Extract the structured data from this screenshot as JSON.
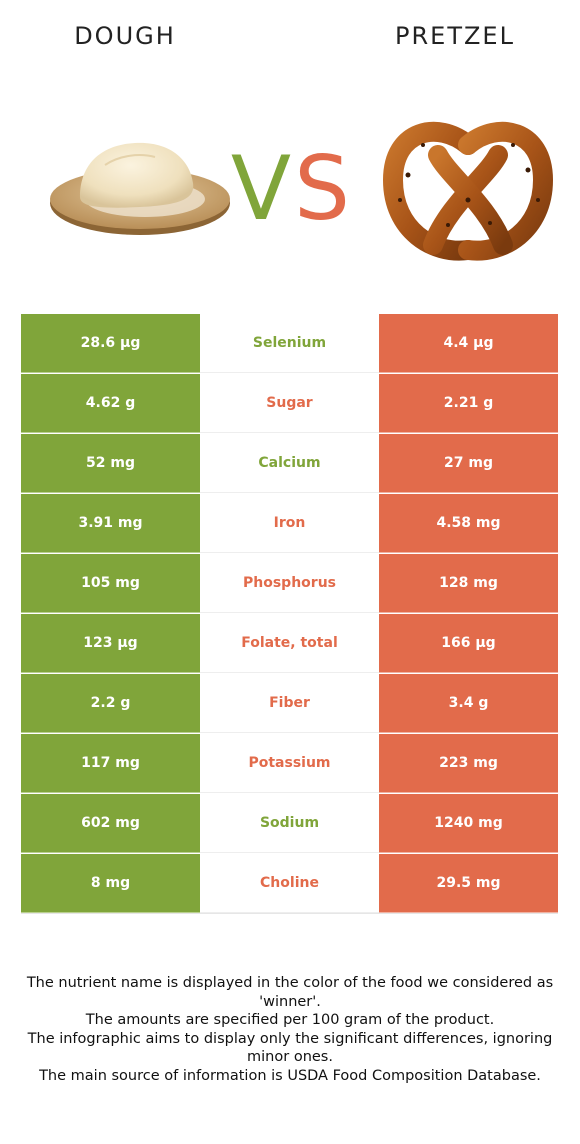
{
  "header": {
    "left_food": "DOUGH",
    "right_food": "PRETZEL",
    "vs_left": "V",
    "vs_right": "S"
  },
  "colors": {
    "left": "#80a53a",
    "right": "#e26b4b"
  },
  "rows": [
    {
      "nutrient": "Selenium",
      "left": "28.6 µg",
      "right": "4.4 µg",
      "winner": "left"
    },
    {
      "nutrient": "Sugar",
      "left": "4.62 g",
      "right": "2.21 g",
      "winner": "right"
    },
    {
      "nutrient": "Calcium",
      "left": "52 mg",
      "right": "27 mg",
      "winner": "left"
    },
    {
      "nutrient": "Iron",
      "left": "3.91 mg",
      "right": "4.58 mg",
      "winner": "right"
    },
    {
      "nutrient": "Phosphorus",
      "left": "105 mg",
      "right": "128 mg",
      "winner": "right"
    },
    {
      "nutrient": "Folate, total",
      "left": "123 µg",
      "right": "166 µg",
      "winner": "right"
    },
    {
      "nutrient": "Fiber",
      "left": "2.2 g",
      "right": "3.4 g",
      "winner": "right"
    },
    {
      "nutrient": "Potassium",
      "left": "117 mg",
      "right": "223 mg",
      "winner": "right"
    },
    {
      "nutrient": "Sodium",
      "left": "602 mg",
      "right": "1240 mg",
      "winner": "left"
    },
    {
      "nutrient": "Choline",
      "left": "8 mg",
      "right": "29.5 mg",
      "winner": "right"
    }
  ],
  "footnotes": [
    "The nutrient name is displayed in the color of the food we considered as 'winner'.",
    "The amounts are specified per 100 gram of the product.",
    "The infographic aims to display only the significant differences, ignoring minor ones.",
    "The main source of information is USDA Food Composition Database."
  ]
}
